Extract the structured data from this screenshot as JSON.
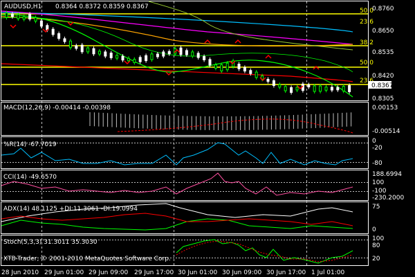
{
  "header": {
    "symbol": "AUDUSD,H1",
    "ohlc": "0.8364 0.8372 0.8359 0.8367"
  },
  "price_axis": {
    "ticks": [
      "0.8760",
      "0.8650",
      "0.8535",
      "0.8420",
      "0.8305"
    ],
    "current": "0.8367"
  },
  "fibo_labels": [
    "50.0",
    "23.6",
    "38.2",
    "50.0",
    "23.6"
  ],
  "time_axis": [
    "28 Jun 2010",
    "29 Jun 01:00",
    "29 Jun 09:00",
    "29 Jun 17:00",
    "30 Jun 01:00",
    "30 Jun 09:00",
    "30 Jun 17:00",
    "1 Jul 01:00"
  ],
  "indicators": {
    "macd": {
      "label": "MACD(12,26,9) -0.00414 -0.00398",
      "ticks": [
        "0.00153",
        "-0.00514"
      ]
    },
    "wpr": {
      "label": "%R(14) -67.7019",
      "ticks": [
        "0",
        "-20",
        "-80"
      ]
    },
    "cci": {
      "label": "CCI(14) -49.6570",
      "ticks": [
        "188.6994",
        "100",
        "-100",
        "-230.2000"
      ]
    },
    "adx": {
      "label": "ADX(14) 48.1125 +DI:11.3061 -DI:19.0994",
      "ticks": [
        "75",
        "0"
      ]
    },
    "stoch": {
      "label": "Stoch(5,3,3) 31.3011 35.3030",
      "ticks": [
        "100",
        "80",
        "20"
      ]
    }
  },
  "copyright": "XTB-Trader, © 2001-2010 MetaQuotes Software Corp.",
  "colors": {
    "background": "#000000",
    "grid": "#c0c0c0",
    "candle_up": "#00ff00",
    "candle_down": "#ffffff",
    "fractal": "#ff0000",
    "fibo": "#ffff00",
    "macd_hist": "#c0c0c0",
    "macd_signal": "#ff0000",
    "wpr": "#00bfff",
    "cci": "#ff4fa0",
    "adx_main": "#ffffff",
    "adx_plus": "#00ff00",
    "adx_minus": "#ff0000",
    "stoch_main": "#00ff00",
    "stoch_signal": "#ff0000"
  }
}
